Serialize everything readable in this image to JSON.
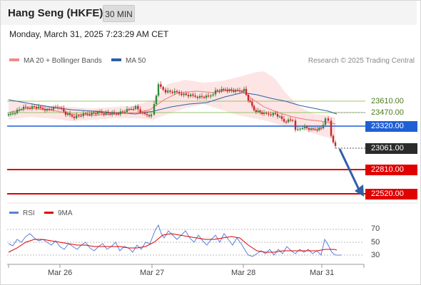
{
  "header": {
    "title": "Hang Seng (HKFE)",
    "period_button": "30 MIN",
    "datetime": "Monday, March 31, 2025 7:23:29 AM CET"
  },
  "legend": {
    "ma20_label": "MA 20 + Bollinger Bands",
    "ma50_label": "MA 50",
    "source": "Research © 2025 Trading Central"
  },
  "colors": {
    "ma20": "#f08a8a",
    "ma50": "#2f5f9f",
    "bands": "#fde0e0",
    "bull": "#2c8a3e",
    "bear": "#c62828",
    "level_green": "#9cc56b",
    "pivot_blue": "#1f5fd6",
    "support_red": "#e00000",
    "arrow": "#2f5fa8",
    "rsi": "#5b7fd8",
    "rsi_ma": "#e00000"
  },
  "levels": [
    {
      "value": "23610.00",
      "kind": "resistance"
    },
    {
      "value": "23470.00",
      "kind": "resistance"
    },
    {
      "value": "23320.00",
      "kind": "pivot"
    },
    {
      "value": "23061.00",
      "kind": "last"
    },
    {
      "value": "22810.00",
      "kind": "support"
    },
    {
      "value": "22520.00",
      "kind": "support"
    }
  ],
  "rsi_panel": {
    "rsi_label": "RSI",
    "ma_label": "9MA",
    "ticks": [
      "70",
      "50",
      "30"
    ]
  },
  "x_axis": {
    "labels": [
      "Mar 26",
      "Mar 27",
      "Mar 28",
      "Mar 31"
    ]
  }
}
